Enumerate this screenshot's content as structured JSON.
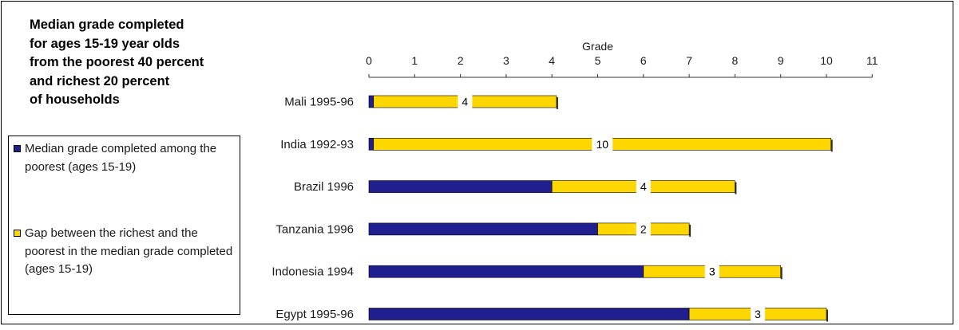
{
  "chart_data": {
    "type": "bar",
    "stacked": true,
    "orientation": "horizontal",
    "title": "Median grade completed for ages 15-19 year olds from the poorest 40 percent and richest 20 percent of households",
    "title_lines": [
      "Median grade completed",
      "for ages 15-19 year olds",
      "from the poorest 40 percent",
      "and richest 20 percent",
      "of households"
    ],
    "xlabel": "Grade",
    "ylabel": "",
    "xlim": [
      0,
      11
    ],
    "ticks": [
      0,
      1,
      2,
      3,
      4,
      5,
      6,
      7,
      8,
      9,
      10,
      11
    ],
    "grid": false,
    "legend_position": "left",
    "categories": [
      "Mali 1995-96",
      "India 1992-93",
      "Brazil 1996",
      "Tanzania 1996",
      "Indonesia 1994",
      "Egypt 1995-96"
    ],
    "series": [
      {
        "name": "Median grade completed among the poorest (ages 15-19)",
        "color": "#1f1f8f",
        "values": [
          0.1,
          0.1,
          4,
          5,
          6,
          7
        ]
      },
      {
        "name": "Gap between the richest and the poorest in the median grade completed (ages 15-19)",
        "color": "#ffd700",
        "values": [
          4,
          10,
          4,
          2,
          3,
          3
        ]
      }
    ],
    "data_labels": [
      "4",
      "10",
      "4",
      "2",
      "3",
      "3"
    ]
  },
  "legend": {
    "items": [
      {
        "label": "Median grade completed among the poorest (ages 15-19)",
        "color": "#1f1f8f"
      },
      {
        "label": "Gap between the richest and the poorest in the median grade completed (ages 15-19)",
        "color": "#ffd700"
      }
    ]
  }
}
